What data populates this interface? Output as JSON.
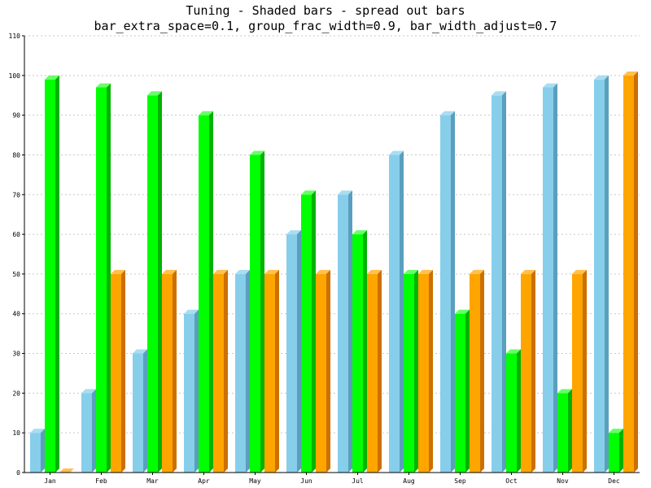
{
  "chart_data": {
    "type": "bar",
    "title": "Tuning - Shaded bars - spread out bars",
    "subtitle": "bar_extra_space=0.1, group_frac_width=0.9, bar_width_adjust=0.7",
    "xlabel": "",
    "ylabel": "",
    "categories": [
      "Jan",
      "Feb",
      "Mar",
      "Apr",
      "May",
      "Jun",
      "Jul",
      "Aug",
      "Sep",
      "Oct",
      "Nov",
      "Dec"
    ],
    "yticks": [
      0,
      10,
      20,
      30,
      40,
      50,
      60,
      70,
      80,
      90,
      100,
      110
    ],
    "ylim": [
      0,
      110
    ],
    "grid": true,
    "series": [
      {
        "values": [
          10,
          20,
          30,
          40,
          50,
          60,
          70,
          80,
          90,
          95,
          97,
          99
        ],
        "color": "#87ceeb",
        "side_color": "#5a9fbd",
        "top_color": "#a9ddf2"
      },
      {
        "values": [
          99,
          97,
          95,
          90,
          80,
          70,
          60,
          50,
          40,
          30,
          20,
          10
        ],
        "color": "#00ff00",
        "side_color": "#00b300",
        "top_color": "#66ff66"
      },
      {
        "values": [
          0,
          50,
          50,
          50,
          50,
          50,
          50,
          50,
          50,
          50,
          50,
          100
        ],
        "color": "#ffa500",
        "side_color": "#cc7000",
        "top_color": "#ffc04d"
      }
    ]
  }
}
